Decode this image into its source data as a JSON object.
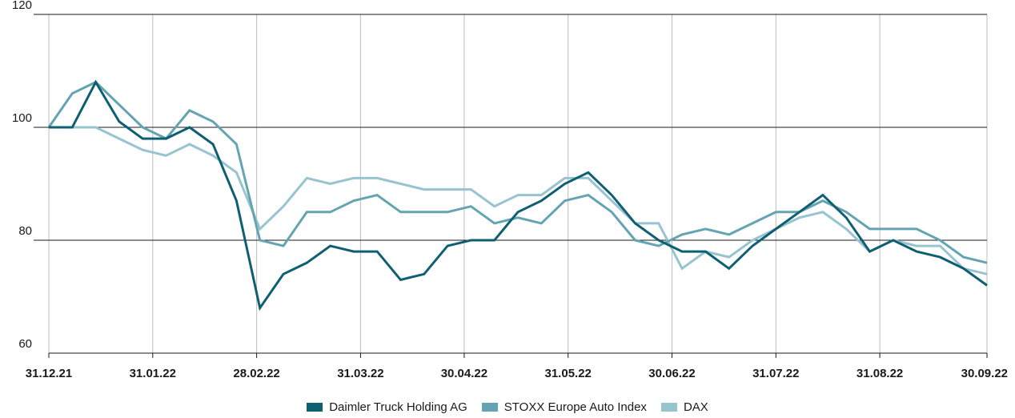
{
  "chart_data": {
    "type": "line",
    "title": "",
    "xlabel": "",
    "ylabel": "",
    "ylim": [
      60,
      120
    ],
    "yticks": [
      "60",
      "80",
      "100",
      "120"
    ],
    "xtick_labels": [
      "31.12.21",
      "31.01.22",
      "28.02.22",
      "31.03.22",
      "30.04.22",
      "31.05.22",
      "30.06.22",
      "31.07.22",
      "31.08.22",
      "30.09.22"
    ],
    "x_weeks": 40,
    "grid": "horizontal at 80/100/120, vertical at month ends",
    "legend_position": "bottom-center",
    "series": [
      {
        "name": "Daimler Truck Holding AG",
        "color": "#0f5f73",
        "values": [
          100,
          100,
          108,
          101,
          98,
          98,
          100,
          97,
          87,
          68,
          74,
          76,
          79,
          78,
          78,
          73,
          74,
          79,
          80,
          80,
          85,
          87,
          90,
          92,
          88,
          83,
          80,
          78,
          78,
          75,
          79,
          82,
          85,
          88,
          84,
          78,
          80,
          78,
          77,
          75,
          72
        ]
      },
      {
        "name": "STOXX Europe Auto Index",
        "color": "#64a4b2",
        "values": [
          100,
          106,
          108,
          104,
          100,
          98,
          103,
          101,
          97,
          80,
          79,
          85,
          85,
          87,
          88,
          85,
          85,
          85,
          86,
          83,
          84,
          83,
          87,
          88,
          85,
          80,
          79,
          81,
          82,
          81,
          83,
          85,
          85,
          87,
          85,
          82,
          82,
          82,
          80,
          77,
          76
        ]
      },
      {
        "name": "DAX",
        "color": "#97c4cf",
        "values": [
          100,
          100,
          100,
          98,
          96,
          95,
          97,
          95,
          92,
          82,
          86,
          91,
          90,
          91,
          91,
          90,
          89,
          89,
          89,
          86,
          88,
          88,
          91,
          91,
          87,
          83,
          83,
          75,
          78,
          77,
          80,
          82,
          84,
          85,
          82,
          78,
          80,
          79,
          79,
          75,
          74
        ]
      }
    ]
  }
}
